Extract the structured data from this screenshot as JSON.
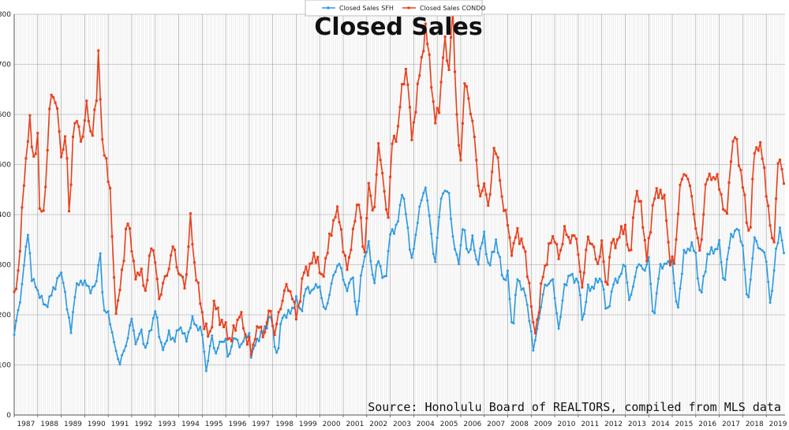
{
  "chart_data": {
    "type": "line",
    "title": "Closed Sales",
    "source": "Source: Honolulu Board of REALTORS, compiled from MLS data",
    "xlabel": "",
    "ylabel": "",
    "ylim": [
      0,
      800
    ],
    "yticks": [
      0,
      100,
      200,
      300,
      400,
      500,
      600,
      700,
      800
    ],
    "x_start_year": 1987,
    "x_end_year": 2019.8,
    "year_ticks": [
      "1987",
      "1988",
      "1989",
      "1990",
      "1991",
      "1992",
      "1993",
      "1994",
      "1995",
      "1996",
      "1997",
      "1998",
      "1999",
      "2000",
      "2001",
      "2002",
      "2003",
      "2004",
      "2005",
      "2006",
      "2007",
      "2008",
      "2009",
      "2010",
      "2011",
      "2012",
      "2013",
      "2014",
      "2015",
      "2016",
      "2017",
      "2018",
      "2019"
    ],
    "grid": true,
    "legend_position": "top-center",
    "series": [
      {
        "name": "Closed Sales SFH",
        "color": "#2e9be0",
        "anchors": [
          [
            1987.0,
            160
          ],
          [
            1987.25,
            230
          ],
          [
            1987.5,
            330
          ],
          [
            1987.6,
            370
          ],
          [
            1987.75,
            270
          ],
          [
            1988.0,
            250
          ],
          [
            1988.3,
            215
          ],
          [
            1988.6,
            240
          ],
          [
            1988.9,
            280
          ],
          [
            1989.1,
            270
          ],
          [
            1989.4,
            160
          ],
          [
            1989.6,
            250
          ],
          [
            1989.9,
            270
          ],
          [
            1990.2,
            250
          ],
          [
            1990.5,
            260
          ],
          [
            1990.65,
            340
          ],
          [
            1990.8,
            200
          ],
          [
            1991.0,
            210
          ],
          [
            1991.2,
            150
          ],
          [
            1991.4,
            120
          ],
          [
            1991.5,
            100
          ],
          [
            1991.8,
            150
          ],
          [
            1992.0,
            190
          ],
          [
            1992.2,
            140
          ],
          [
            1992.4,
            170
          ],
          [
            1992.6,
            130
          ],
          [
            1992.8,
            170
          ],
          [
            1993.0,
            210
          ],
          [
            1993.2,
            150
          ],
          [
            1993.4,
            130
          ],
          [
            1993.6,
            170
          ],
          [
            1993.8,
            140
          ],
          [
            1994.0,
            180
          ],
          [
            1994.3,
            150
          ],
          [
            1994.6,
            190
          ],
          [
            1994.9,
            170
          ],
          [
            1995.0,
            160
          ],
          [
            1995.15,
            100
          ],
          [
            1995.2,
            85
          ],
          [
            1995.4,
            160
          ],
          [
            1995.6,
            120
          ],
          [
            1995.8,
            150
          ],
          [
            1996.0,
            150
          ],
          [
            1996.1,
            105
          ],
          [
            1996.3,
            155
          ],
          [
            1996.6,
            140
          ],
          [
            1996.8,
            150
          ],
          [
            1997.0,
            165
          ],
          [
            1997.1,
            110
          ],
          [
            1997.3,
            150
          ],
          [
            1997.6,
            165
          ],
          [
            1997.9,
            200
          ],
          [
            1998.1,
            140
          ],
          [
            1998.2,
            115
          ],
          [
            1998.4,
            200
          ],
          [
            1998.7,
            200
          ],
          [
            1999.0,
            230
          ],
          [
            1999.2,
            205
          ],
          [
            1999.4,
            250
          ],
          [
            1999.7,
            250
          ],
          [
            2000.0,
            260
          ],
          [
            2000.2,
            200
          ],
          [
            2000.5,
            260
          ],
          [
            2000.8,
            310
          ],
          [
            2001.0,
            270
          ],
          [
            2001.2,
            250
          ],
          [
            2001.4,
            280
          ],
          [
            2001.6,
            190
          ],
          [
            2001.8,
            300
          ],
          [
            2002.1,
            340
          ],
          [
            2002.3,
            260
          ],
          [
            2002.5,
            310
          ],
          [
            2002.8,
            260
          ],
          [
            2003.0,
            370
          ],
          [
            2003.2,
            360
          ],
          [
            2003.5,
            440
          ],
          [
            2003.7,
            400
          ],
          [
            2003.9,
            300
          ],
          [
            2004.2,
            400
          ],
          [
            2004.5,
            460
          ],
          [
            2004.7,
            380
          ],
          [
            2004.9,
            300
          ],
          [
            2005.2,
            450
          ],
          [
            2005.5,
            440
          ],
          [
            2005.7,
            340
          ],
          [
            2005.9,
            300
          ],
          [
            2006.1,
            380
          ],
          [
            2006.3,
            320
          ],
          [
            2006.5,
            350
          ],
          [
            2006.7,
            300
          ],
          [
            2007.0,
            360
          ],
          [
            2007.2,
            290
          ],
          [
            2007.5,
            350
          ],
          [
            2007.8,
            270
          ],
          [
            2008.0,
            280
          ],
          [
            2008.2,
            165
          ],
          [
            2008.4,
            270
          ],
          [
            2008.7,
            250
          ],
          [
            2009.0,
            170
          ],
          [
            2009.1,
            120
          ],
          [
            2009.3,
            190
          ],
          [
            2009.6,
            260
          ],
          [
            2009.9,
            270
          ],
          [
            2010.2,
            165
          ],
          [
            2010.4,
            260
          ],
          [
            2010.7,
            280
          ],
          [
            2011.0,
            265
          ],
          [
            2011.2,
            185
          ],
          [
            2011.4,
            250
          ],
          [
            2011.7,
            260
          ],
          [
            2012.0,
            275
          ],
          [
            2012.2,
            200
          ],
          [
            2012.5,
            260
          ],
          [
            2012.8,
            280
          ],
          [
            2013.0,
            300
          ],
          [
            2013.2,
            220
          ],
          [
            2013.5,
            300
          ],
          [
            2013.8,
            290
          ],
          [
            2014.0,
            310
          ],
          [
            2014.2,
            190
          ],
          [
            2014.5,
            300
          ],
          [
            2014.8,
            300
          ],
          [
            2015.0,
            310
          ],
          [
            2015.2,
            200
          ],
          [
            2015.5,
            320
          ],
          [
            2015.8,
            340
          ],
          [
            2016.0,
            320
          ],
          [
            2016.2,
            230
          ],
          [
            2016.5,
            320
          ],
          [
            2016.8,
            330
          ],
          [
            2017.0,
            340
          ],
          [
            2017.2,
            260
          ],
          [
            2017.5,
            360
          ],
          [
            2017.8,
            370
          ],
          [
            2018.0,
            340
          ],
          [
            2018.2,
            215
          ],
          [
            2018.5,
            350
          ],
          [
            2018.8,
            330
          ],
          [
            2019.0,
            310
          ],
          [
            2019.2,
            210
          ],
          [
            2019.4,
            330
          ],
          [
            2019.6,
            370
          ],
          [
            2019.8,
            305
          ]
        ]
      },
      {
        "name": "Closed Sales CONDO",
        "color": "#e8401c",
        "anchors": [
          [
            1987.0,
            230
          ],
          [
            1987.2,
            300
          ],
          [
            1987.4,
            450
          ],
          [
            1987.55,
            540
          ],
          [
            1987.65,
            600
          ],
          [
            1987.8,
            500
          ],
          [
            1988.0,
            560
          ],
          [
            1988.1,
            380
          ],
          [
            1988.3,
            430
          ],
          [
            1988.5,
            600
          ],
          [
            1988.6,
            650
          ],
          [
            1988.8,
            620
          ],
          [
            1989.0,
            520
          ],
          [
            1989.2,
            560
          ],
          [
            1989.35,
            390
          ],
          [
            1989.5,
            560
          ],
          [
            1989.7,
            590
          ],
          [
            1989.9,
            540
          ],
          [
            1990.1,
            630
          ],
          [
            1990.3,
            540
          ],
          [
            1990.5,
            640
          ],
          [
            1990.62,
            765
          ],
          [
            1990.7,
            540
          ],
          [
            1990.9,
            520
          ],
          [
            1991.1,
            430
          ],
          [
            1991.3,
            220
          ],
          [
            1991.4,
            210
          ],
          [
            1991.6,
            290
          ],
          [
            1991.8,
            390
          ],
          [
            1992.0,
            340
          ],
          [
            1992.2,
            260
          ],
          [
            1992.4,
            300
          ],
          [
            1992.6,
            230
          ],
          [
            1992.8,
            350
          ],
          [
            1993.0,
            300
          ],
          [
            1993.2,
            230
          ],
          [
            1993.4,
            270
          ],
          [
            1993.6,
            300
          ],
          [
            1993.8,
            340
          ],
          [
            1994.0,
            280
          ],
          [
            1994.3,
            260
          ],
          [
            1994.5,
            390
          ],
          [
            1994.7,
            290
          ],
          [
            1994.9,
            230
          ],
          [
            1995.1,
            180
          ],
          [
            1995.3,
            150
          ],
          [
            1995.5,
            220
          ],
          [
            1995.8,
            190
          ],
          [
            1996.0,
            170
          ],
          [
            1996.2,
            150
          ],
          [
            1996.4,
            170
          ],
          [
            1996.6,
            210
          ],
          [
            1996.8,
            160
          ],
          [
            1997.0,
            150
          ],
          [
            1997.1,
            110
          ],
          [
            1997.3,
            180
          ],
          [
            1997.6,
            160
          ],
          [
            1997.9,
            210
          ],
          [
            1998.1,
            160
          ],
          [
            1998.3,
            210
          ],
          [
            1998.5,
            250
          ],
          [
            1998.8,
            250
          ],
          [
            1999.0,
            190
          ],
          [
            1999.3,
            280
          ],
          [
            1999.6,
            300
          ],
          [
            1999.9,
            320
          ],
          [
            2000.1,
            260
          ],
          [
            2000.3,
            330
          ],
          [
            2000.5,
            360
          ],
          [
            2000.7,
            420
          ],
          [
            2001.0,
            340
          ],
          [
            2001.2,
            280
          ],
          [
            2001.4,
            370
          ],
          [
            2001.7,
            430
          ],
          [
            2001.9,
            300
          ],
          [
            2002.1,
            480
          ],
          [
            2002.3,
            380
          ],
          [
            2002.5,
            550
          ],
          [
            2002.7,
            460
          ],
          [
            2002.9,
            390
          ],
          [
            2003.1,
            550
          ],
          [
            2003.3,
            560
          ],
          [
            2003.5,
            650
          ],
          [
            2003.7,
            700
          ],
          [
            2003.9,
            550
          ],
          [
            2004.1,
            620
          ],
          [
            2004.3,
            700
          ],
          [
            2004.5,
            770
          ],
          [
            2004.7,
            700
          ],
          [
            2004.9,
            580
          ],
          [
            2005.1,
            620
          ],
          [
            2005.3,
            750
          ],
          [
            2005.5,
            690
          ],
          [
            2005.65,
            820
          ],
          [
            2005.8,
            620
          ],
          [
            2006.0,
            500
          ],
          [
            2006.2,
            690
          ],
          [
            2006.4,
            600
          ],
          [
            2006.6,
            560
          ],
          [
            2006.8,
            420
          ],
          [
            2007.0,
            470
          ],
          [
            2007.2,
            400
          ],
          [
            2007.4,
            540
          ],
          [
            2007.6,
            500
          ],
          [
            2007.8,
            420
          ],
          [
            2008.0,
            380
          ],
          [
            2008.2,
            320
          ],
          [
            2008.4,
            370
          ],
          [
            2008.7,
            330
          ],
          [
            2008.9,
            270
          ],
          [
            2009.0,
            220
          ],
          [
            2009.1,
            160
          ],
          [
            2009.3,
            200
          ],
          [
            2009.5,
            280
          ],
          [
            2009.8,
            340
          ],
          [
            2010.0,
            360
          ],
          [
            2010.2,
            300
          ],
          [
            2010.4,
            380
          ],
          [
            2010.6,
            340
          ],
          [
            2010.8,
            370
          ],
          [
            2011.0,
            320
          ],
          [
            2011.2,
            250
          ],
          [
            2011.4,
            360
          ],
          [
            2011.6,
            340
          ],
          [
            2011.8,
            300
          ],
          [
            2012.0,
            340
          ],
          [
            2012.2,
            250
          ],
          [
            2012.4,
            340
          ],
          [
            2012.7,
            350
          ],
          [
            2013.0,
            380
          ],
          [
            2013.2,
            300
          ],
          [
            2013.4,
            440
          ],
          [
            2013.7,
            420
          ],
          [
            2013.9,
            300
          ],
          [
            2014.2,
            430
          ],
          [
            2014.5,
            450
          ],
          [
            2014.7,
            420
          ],
          [
            2014.9,
            310
          ],
          [
            2015.1,
            300
          ],
          [
            2015.3,
            450
          ],
          [
            2015.6,
            490
          ],
          [
            2015.8,
            440
          ],
          [
            2016.0,
            380
          ],
          [
            2016.2,
            310
          ],
          [
            2016.4,
            460
          ],
          [
            2016.7,
            480
          ],
          [
            2016.9,
            470
          ],
          [
            2017.1,
            440
          ],
          [
            2017.3,
            380
          ],
          [
            2017.5,
            520
          ],
          [
            2017.7,
            560
          ],
          [
            2017.9,
            490
          ],
          [
            2018.1,
            420
          ],
          [
            2018.3,
            350
          ],
          [
            2018.5,
            530
          ],
          [
            2018.7,
            540
          ],
          [
            2018.9,
            500
          ],
          [
            2019.1,
            400
          ],
          [
            2019.3,
            330
          ],
          [
            2019.5,
            500
          ],
          [
            2019.7,
            500
          ],
          [
            2019.8,
            430
          ]
        ]
      }
    ]
  }
}
